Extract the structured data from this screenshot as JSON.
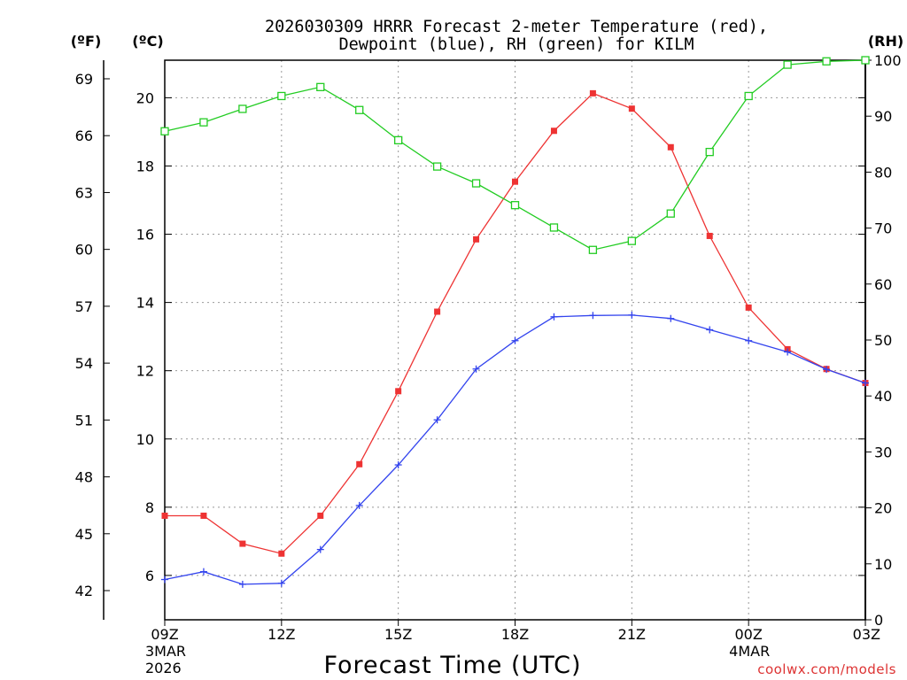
{
  "title": {
    "line1": "2026030309 HRRR Forecast 2-meter Temperature (red),",
    "line2": "Dewpoint (blue), RH (green) for KILM"
  },
  "axis_units": {
    "fahrenheit": "(ºF)",
    "celsius": "(ºC)",
    "rh": "(RH)"
  },
  "xlabel": "Forecast Time (UTC)",
  "credit": "coolwx.com/models",
  "colors": {
    "temperature": "#ee3333",
    "dewpoint": "#3344ee",
    "rh": "#22cc22",
    "grid": "#999999",
    "credit": "#dd3333"
  },
  "chart_data": {
    "type": "line",
    "x_hours": [
      0,
      1,
      2,
      3,
      4,
      5,
      6,
      7,
      8,
      9,
      10,
      11,
      12,
      13,
      14,
      15,
      16,
      17,
      18
    ],
    "x_range": [
      0,
      18
    ],
    "x_ticks": [
      {
        "hour": 0,
        "label": "09Z",
        "sub1": "3MAR",
        "sub2": "2026"
      },
      {
        "hour": 3,
        "label": "12Z",
        "sub1": "",
        "sub2": ""
      },
      {
        "hour": 6,
        "label": "15Z",
        "sub1": "",
        "sub2": ""
      },
      {
        "hour": 9,
        "label": "18Z",
        "sub1": "",
        "sub2": ""
      },
      {
        "hour": 12,
        "label": "21Z",
        "sub1": "",
        "sub2": ""
      },
      {
        "hour": 15,
        "label": "00Z",
        "sub1": "4MAR",
        "sub2": ""
      },
      {
        "hour": 18,
        "label": "03Z",
        "sub1": "",
        "sub2": ""
      }
    ],
    "celsius_range": [
      4.7,
      21.1
    ],
    "celsius_ticks": [
      6,
      8,
      10,
      12,
      14,
      16,
      18,
      20
    ],
    "fahrenheit_ticks": [
      42,
      45,
      48,
      51,
      54,
      57,
      60,
      63,
      66,
      69
    ],
    "rh_range": [
      0,
      100
    ],
    "rh_ticks": [
      0,
      10,
      20,
      30,
      40,
      50,
      60,
      70,
      80,
      90,
      100
    ],
    "series": [
      {
        "name": "Temperature",
        "unit": "C",
        "marker": "filled-square",
        "values": [
          7.75,
          7.75,
          6.93,
          6.64,
          7.75,
          9.26,
          11.4,
          13.73,
          15.85,
          17.54,
          19.03,
          20.13,
          19.68,
          18.55,
          15.95,
          13.85,
          12.63,
          12.05,
          11.64
        ]
      },
      {
        "name": "Dewpoint",
        "unit": "C",
        "marker": "plus",
        "values": [
          5.88,
          6.11,
          5.74,
          5.77,
          6.76,
          8.05,
          9.24,
          10.56,
          12.05,
          12.88,
          13.58,
          13.62,
          13.63,
          13.53,
          13.2,
          12.88,
          12.55,
          12.04,
          11.64
        ]
      },
      {
        "name": "RH",
        "unit": "%",
        "marker": "open-square",
        "values": [
          87.3,
          88.9,
          91.3,
          93.6,
          95.2,
          91.1,
          85.7,
          81.0,
          78.0,
          74.1,
          70.1,
          66.1,
          67.7,
          72.6,
          83.6,
          93.6,
          99.2,
          99.8,
          100.0
        ]
      }
    ]
  }
}
